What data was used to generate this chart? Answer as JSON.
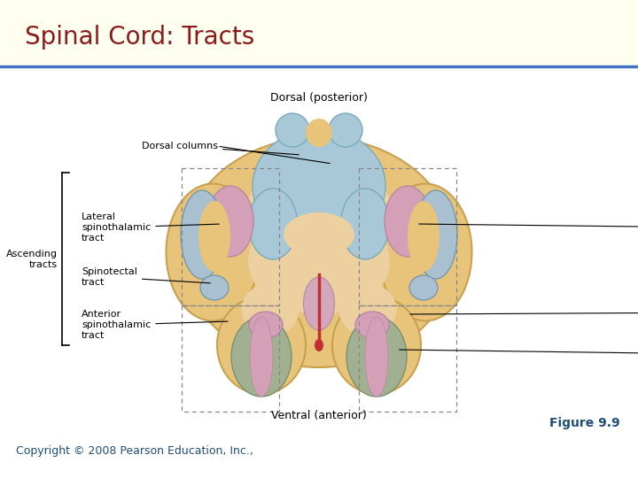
{
  "title": "Spinal Cord: Tracts",
  "title_color": "#8B1A1A",
  "title_fontsize": 20,
  "bg_color_top": "#FFFFF0",
  "header_line_color": "#4472C4",
  "figure_label": "Figure 9.9",
  "figure_label_color": "#1F4E79",
  "copyright_text": "Copyright © 2008 Pearson Education, Inc.,",
  "copyright_color": "#1F4E79",
  "dorsal_label": "Dorsal (posterior)",
  "ventral_label": "Ventral (anterior)",
  "colors": {
    "outer_body": "#E8C47A",
    "outer_edge": "#C8A050",
    "gray_matter": "#E0A060",
    "dorsal_column": "#A8C8D8",
    "dorsal_edge": "#7AAABB",
    "lateral_pink": "#D4A0B8",
    "lateral_pink_edge": "#B888A0",
    "lateral_blue": "#A8C0D0",
    "lateral_blue_edge": "#7899AA",
    "ventral_pink": "#D4A0B8",
    "ventral_green": "#A0B090",
    "ventral_green_edge": "#7A9070",
    "central_pink": "#D4A8BC",
    "red_fissure": "#C03030",
    "dashed_line": "#888888",
    "inner_lighter": "#EDD0A0"
  }
}
